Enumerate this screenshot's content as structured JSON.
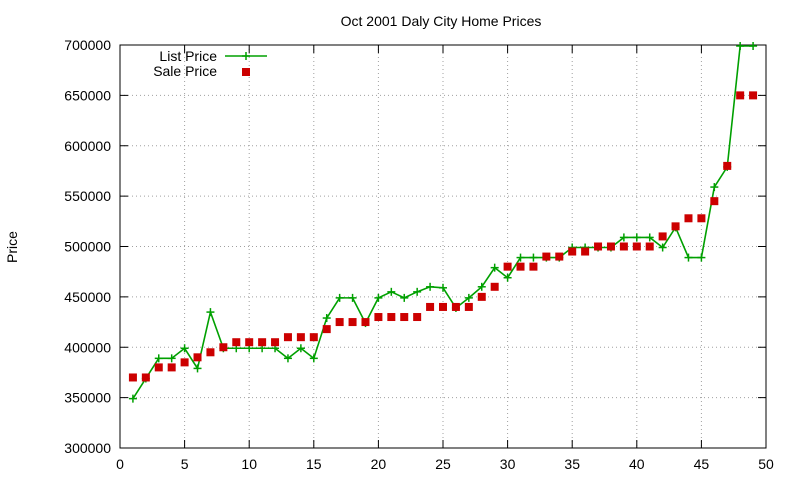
{
  "chart_data": {
    "type": "line",
    "title": "Oct 2001 Daly City Home Prices",
    "xlabel": "",
    "ylabel": "Price",
    "xlim": [
      0,
      50
    ],
    "ylim": [
      300000,
      700000
    ],
    "grid": true,
    "legend_position": "top-left",
    "x_ticks": [
      0,
      5,
      10,
      15,
      20,
      25,
      30,
      35,
      40,
      45,
      50
    ],
    "y_ticks": [
      300000,
      350000,
      400000,
      450000,
      500000,
      550000,
      600000,
      650000,
      700000
    ],
    "series": [
      {
        "name": "List Price",
        "style": "lines+points",
        "marker": "plus",
        "color": "#00a000",
        "x": [
          1,
          2,
          3,
          4,
          5,
          6,
          7,
          8,
          9,
          10,
          11,
          12,
          13,
          14,
          15,
          16,
          17,
          18,
          19,
          20,
          21,
          22,
          23,
          24,
          25,
          26,
          27,
          28,
          29,
          30,
          31,
          32,
          33,
          34,
          35,
          36,
          37,
          38,
          39,
          40,
          41,
          42,
          43,
          44,
          45,
          46,
          47,
          48,
          49
        ],
        "y": [
          349000,
          369000,
          389000,
          389000,
          399000,
          379000,
          434900,
          399000,
          399000,
          399000,
          399000,
          399000,
          389000,
          399000,
          389000,
          429000,
          449000,
          449000,
          424000,
          449000,
          455000,
          449000,
          455000,
          460000,
          459000,
          439000,
          449000,
          460000,
          479000,
          469000,
          489000,
          489000,
          489000,
          489000,
          499000,
          499000,
          499000,
          499000,
          509000,
          509000,
          509000,
          499000,
          519000,
          489000,
          489000,
          559000,
          579000,
          699000,
          699000
        ]
      },
      {
        "name": "Sale Price",
        "style": "points",
        "marker": "square",
        "color": "#cc0000",
        "x": [
          1,
          2,
          3,
          4,
          5,
          6,
          7,
          8,
          9,
          10,
          11,
          12,
          13,
          14,
          15,
          16,
          17,
          18,
          19,
          20,
          21,
          22,
          23,
          24,
          25,
          26,
          27,
          28,
          29,
          30,
          31,
          32,
          33,
          34,
          35,
          36,
          37,
          38,
          39,
          40,
          41,
          42,
          43,
          44,
          45,
          46,
          47,
          48,
          49
        ],
        "y": [
          370000,
          370000,
          380000,
          380000,
          385000,
          390000,
          395000,
          400000,
          405000,
          405000,
          405000,
          405000,
          410000,
          410000,
          410000,
          418000,
          425000,
          425000,
          425000,
          430000,
          430000,
          430000,
          430000,
          440000,
          440000,
          440000,
          440000,
          450000,
          460000,
          480000,
          480000,
          480000,
          490000,
          490000,
          495000,
          495000,
          500000,
          500000,
          500000,
          500000,
          500000,
          510000,
          520000,
          528000,
          528000,
          545000,
          580000,
          650000,
          650000
        ]
      }
    ]
  }
}
